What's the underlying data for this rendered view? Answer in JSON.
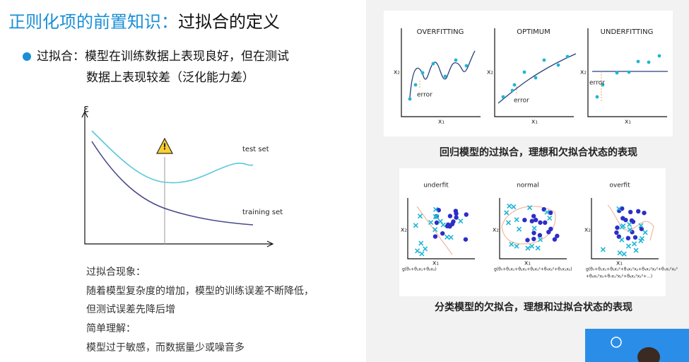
{
  "title": {
    "prefix": "正则化项的前置知识：",
    "main": "过拟合的定义"
  },
  "bullet": {
    "lines": [
      "过拟合：模型在训练数据上表现良好，但在测试",
      "数据上表现较差（泛化能力差）"
    ]
  },
  "diagram": {
    "y_label": "ε",
    "curves": [
      "test set",
      "training set"
    ]
  },
  "notes": {
    "lines": [
      "过拟合现象：",
      "随着模型复杂度的增加，模型的训练误差不断降低，",
      "但测试误差先降后增",
      "简单理解：",
      "模型过于敏感，而数据量少或噪音多"
    ]
  },
  "regression": {
    "panels": [
      {
        "title": "OVERFITTING",
        "x_label": "x₁",
        "y_label": "x₂",
        "annotation": "error"
      },
      {
        "title": "OPTIMUM",
        "x_label": "x₁",
        "y_label": "x₂",
        "annotation": "error"
      },
      {
        "title": "UNDERFITTING",
        "x_label": "x₁",
        "y_label": "x₂",
        "annotation": "error"
      }
    ],
    "caption": "回归模型的过拟合，理想和欠拟合状态的表现"
  },
  "classification": {
    "panels": [
      {
        "title": "underfit",
        "x_label": "x₁",
        "y_label": "x₂",
        "formula": [
          "g(θ₀+θ₁x₁+θ₂x₂)"
        ]
      },
      {
        "title": "normal",
        "x_label": "x₁",
        "y_label": "x₂",
        "formula": [
          "g(θ₀+θ₁x₁+θ₂x₂+θ₃x₁²+θ₄x₂²+θ₅x₁x₂)"
        ]
      },
      {
        "title": "overfit",
        "x_label": "x₁",
        "y_label": "x₂",
        "formula": [
          "g(θ₀+θ₁x₁+θ₂x₁²+θ₃x₁²x₂+θ₄x₁²x₂²+θ₅x₁²x₂³",
          "+θ₆x₁³x₂+θ₇x₁³x₂²+θ₈x₁³x₂³+...)"
        ]
      }
    ],
    "caption": "分类模型的欠拟合，理想和过拟合状态的表现"
  }
}
